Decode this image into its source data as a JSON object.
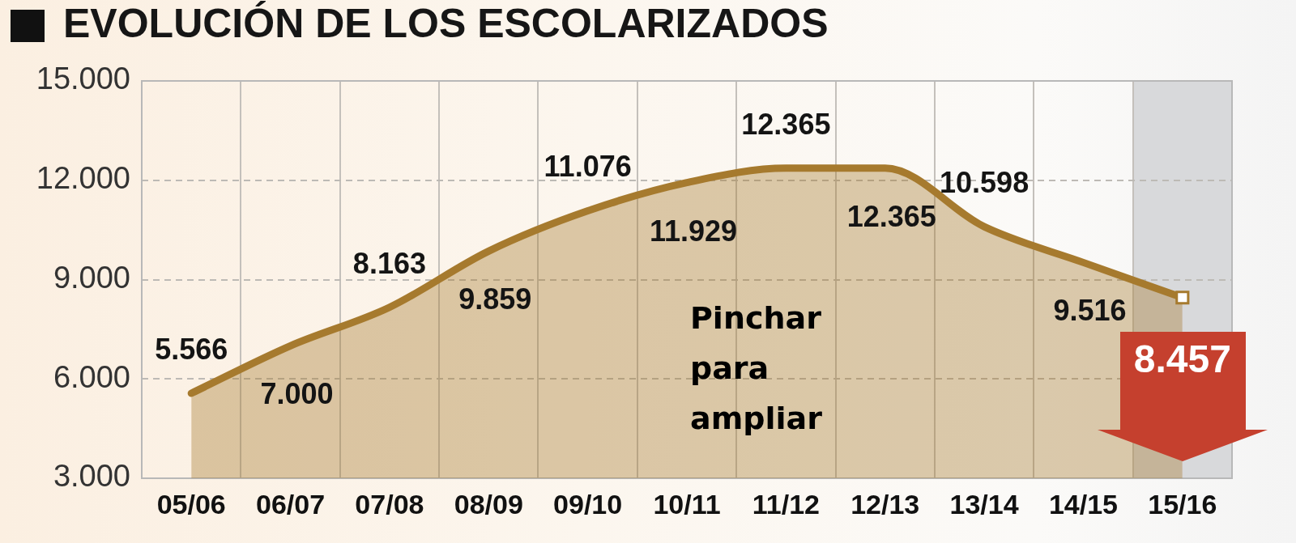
{
  "chart_data": {
    "type": "area",
    "title": "EVOLUCIÓN DE LOS ESCOLARIZADOS",
    "categories": [
      "05/06",
      "06/07",
      "07/08",
      "08/09",
      "09/10",
      "10/11",
      "11/12",
      "12/13",
      "13/14",
      "14/15",
      "15/16"
    ],
    "values": [
      5566,
      7000,
      8163,
      9859,
      11076,
      11929,
      12365,
      12365,
      10598,
      9516,
      8457
    ],
    "value_labels": [
      "5.566",
      "7.000",
      "8.163",
      "9.859",
      "11.076",
      "11.929",
      "12.365",
      "12.365",
      "10.598",
      "9.516",
      "8.457"
    ],
    "color": "#a67a2e",
    "ylim": [
      3000,
      15000
    ],
    "yticks": [
      {
        "value": 3000,
        "label": "3.000"
      },
      {
        "value": 6000,
        "label": "6.000"
      },
      {
        "value": 9000,
        "label": "9.000"
      },
      {
        "value": 12000,
        "label": "12.000"
      },
      {
        "value": 15000,
        "label": "15.000"
      }
    ],
    "grid": true,
    "bands": [
      {
        "axis": "x",
        "from": "15/16",
        "to": "15/16",
        "color": "#d8d9db"
      }
    ],
    "annotations": [
      "Pinchar para ampliar"
    ]
  }
}
